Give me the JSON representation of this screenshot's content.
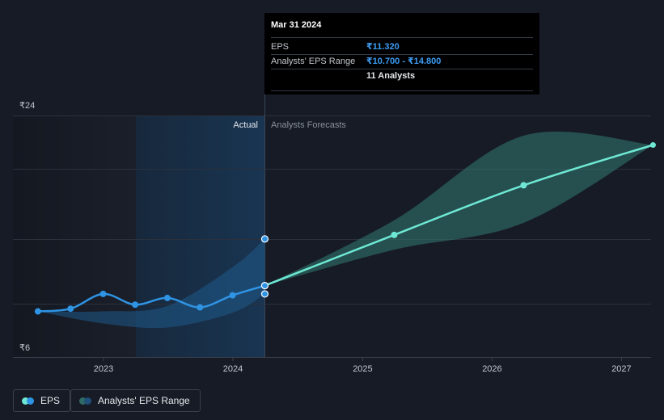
{
  "colors": {
    "background": "#161b26",
    "eps_line": "#2f94e4",
    "forecast_line": "#6ee8d4",
    "forecast_band": "#2f5f5a",
    "actual_band": "#1d4e78",
    "grid": "#2b313c"
  },
  "tooltip": {
    "date": "Mar 31 2024",
    "eps_label": "EPS",
    "eps_value": "₹11.320",
    "range_label": "Analysts' EPS Range",
    "range_value": "₹10.700 - ₹14.800",
    "analysts": "11 Analysts"
  },
  "labels": {
    "actual": "Actual",
    "forecast": "Analysts Forecasts"
  },
  "legend": {
    "eps": "EPS",
    "range": "Analysts' EPS Range"
  },
  "chart_data": {
    "type": "line",
    "y_axis": {
      "min": 6,
      "max": 24,
      "ticks": [
        "₹24",
        "₹6"
      ]
    },
    "x_axis": {
      "labels": [
        "2023",
        "2024",
        "2025",
        "2026",
        "2027"
      ]
    },
    "eps_actual": {
      "x": [
        "2022-06-30",
        "2022-09-30",
        "2022-12-31",
        "2023-03-31",
        "2023-06-30",
        "2023-09-30",
        "2023-12-31",
        "2024-03-31"
      ],
      "values": [
        9.4,
        9.6,
        10.7,
        9.9,
        10.4,
        9.7,
        10.6,
        11.32
      ]
    },
    "eps_forecast": {
      "x": [
        "2024-03-31",
        "2025-03-31",
        "2026-03-31",
        "2027-03-31"
      ],
      "values": [
        11.32,
        15.1,
        18.8,
        21.8
      ]
    },
    "range_actual": {
      "x": [
        "2022-06-30",
        "2022-12-31",
        "2023-06-30",
        "2023-12-31",
        "2024-03-31"
      ],
      "low": [
        9.4,
        8.5,
        8.2,
        9.3,
        10.7
      ],
      "high": [
        9.4,
        9.4,
        9.8,
        12.7,
        14.8
      ]
    },
    "range_forecast": {
      "x": [
        "2024-03-31",
        "2025-03-31",
        "2026-03-31",
        "2027-03-31"
      ],
      "low": [
        11.32,
        14.0,
        16.0,
        21.8
      ],
      "high": [
        11.32,
        16.2,
        22.5,
        21.8
      ]
    },
    "tooltip_markers": [
      10.7,
      11.32,
      14.8
    ]
  }
}
